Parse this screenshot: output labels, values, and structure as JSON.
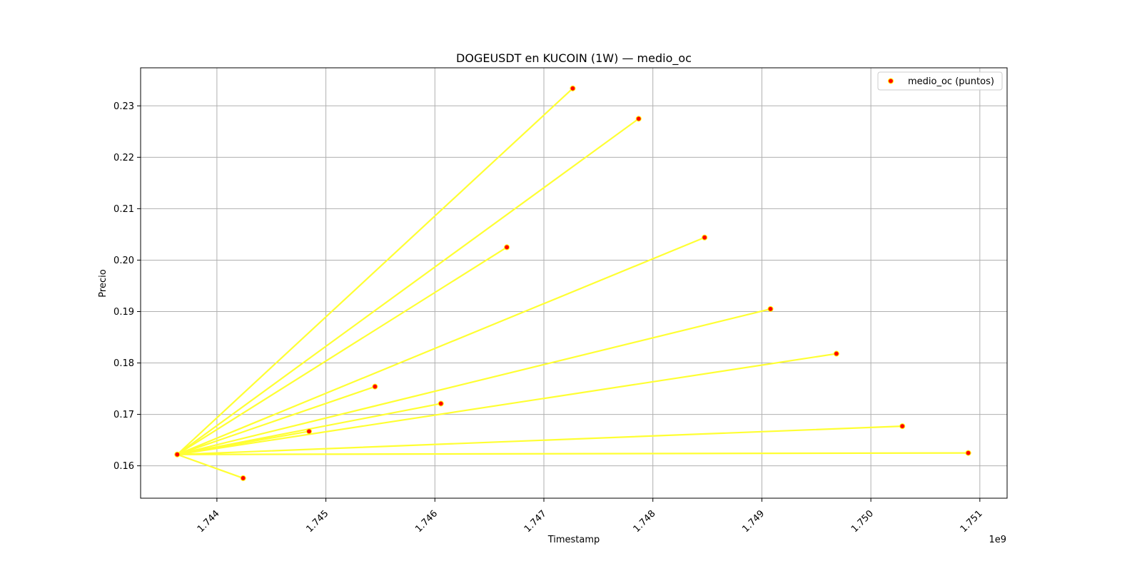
{
  "chart_data": {
    "type": "scatter",
    "title": "DOGEUSDT en KUCOIN (1W) — medio_oc",
    "xlabel": "Timestamp",
    "ylabel": "Precio",
    "x_offset_label": "1e9",
    "xlim": [
      1743300000,
      1751250000
    ],
    "ylim": [
      0.1537,
      0.2374
    ],
    "xticks": [
      1744000000,
      1745000000,
      1746000000,
      1747000000,
      1748000000,
      1749000000,
      1750000000,
      1751000000
    ],
    "xtick_labels": [
      "1.744",
      "1.745",
      "1.746",
      "1.747",
      "1.748",
      "1.749",
      "1.750",
      "1.751"
    ],
    "yticks": [
      0.16,
      0.17,
      0.18,
      0.19,
      0.2,
      0.21,
      0.22,
      0.23
    ],
    "ytick_labels": [
      "0.16",
      "0.17",
      "0.18",
      "0.19",
      "0.20",
      "0.21",
      "0.22",
      "0.23"
    ],
    "grid": true,
    "legend": {
      "position": "top-right",
      "entries": [
        "medio_oc (puntos)"
      ]
    },
    "point_color": "#ff0000",
    "point_edge_color": "#ffff00",
    "line_color": "#ffff33",
    "origin": {
      "x": 1743636000,
      "y": 0.1622
    },
    "points": [
      {
        "x": 1743636000,
        "y": 0.1622
      },
      {
        "x": 1744240800,
        "y": 0.1576
      },
      {
        "x": 1744845600,
        "y": 0.1667
      },
      {
        "x": 1745450400,
        "y": 0.1754
      },
      {
        "x": 1746055200,
        "y": 0.1721
      },
      {
        "x": 1746660000,
        "y": 0.2025
      },
      {
        "x": 1747264800,
        "y": 0.2334
      },
      {
        "x": 1747869600,
        "y": 0.2275
      },
      {
        "x": 1748474400,
        "y": 0.2044
      },
      {
        "x": 1749079200,
        "y": 0.1905
      },
      {
        "x": 1749684000,
        "y": 0.1818
      },
      {
        "x": 1750288800,
        "y": 0.1677
      },
      {
        "x": 1750893600,
        "y": 0.1625
      }
    ]
  }
}
